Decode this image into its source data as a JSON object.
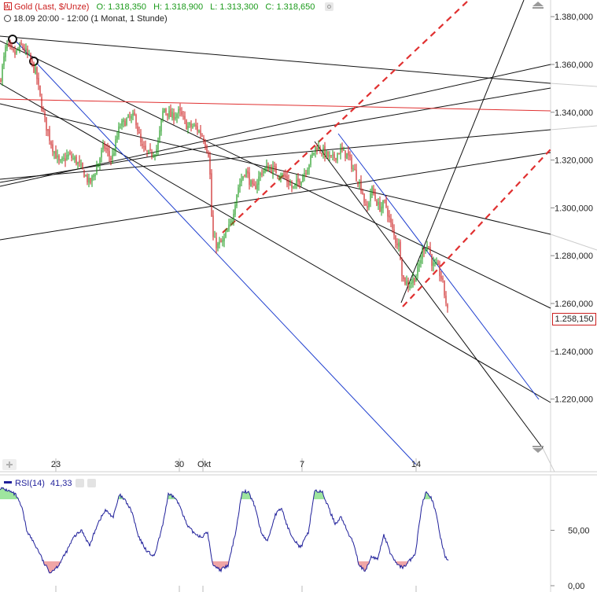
{
  "header": {
    "symbol": "Gold (Last, $/Unze)",
    "open": "O: 1.318,350",
    "high": "H: 1.318,900",
    "low": "L: 1.313,300",
    "close": "C: 1.318,650",
    "info": "18.09 20:00 - 12:00 (1 Monat, 1 Stunde)"
  },
  "current_price_label": "1.258,150",
  "colors": {
    "up": "#1a9a1a",
    "down": "#cc1f1f",
    "trend": "#000000",
    "channel": "#1f3fcf",
    "red_line": "#e03030",
    "rsi": "#1f1f9a",
    "overbought": "#9ee59e",
    "oversold": "#f0a6a6"
  },
  "chart_data": [
    {
      "type": "candlestick",
      "title": "Gold (Last, $/Unze)",
      "y_ticks": [
        "1.380,000",
        "1.360,000",
        "1.340,000",
        "1.320,000",
        "1.300,000",
        "1.280,000",
        "1.260,000",
        "1.240,000",
        "1.220,000"
      ],
      "y_tick_values": [
        1380,
        1360,
        1340,
        1320,
        1300,
        1280,
        1260,
        1240,
        1220
      ],
      "ylim": [
        1210,
        1384
      ],
      "x_ticks": [
        "23",
        "30",
        "Okt",
        "7",
        "14"
      ],
      "x_tick_index": [
        71,
        228,
        258,
        384,
        529
      ],
      "interval": "1 Stunde",
      "period": "1 Monat",
      "last": 1258.15,
      "close_path": [
        [
          0,
          1353
        ],
        [
          8,
          1368
        ],
        [
          18,
          1364
        ],
        [
          28,
          1368
        ],
        [
          38,
          1362
        ],
        [
          46,
          1356
        ],
        [
          52,
          1344
        ],
        [
          58,
          1335
        ],
        [
          66,
          1326
        ],
        [
          76,
          1318
        ],
        [
          86,
          1322
        ],
        [
          96,
          1320
        ],
        [
          106,
          1315
        ],
        [
          114,
          1310
        ],
        [
          122,
          1316
        ],
        [
          132,
          1326
        ],
        [
          142,
          1320
        ],
        [
          152,
          1334
        ],
        [
          162,
          1337
        ],
        [
          172,
          1338
        ],
        [
          180,
          1325
        ],
        [
          190,
          1322
        ],
        [
          200,
          1325
        ],
        [
          208,
          1342
        ],
        [
          218,
          1338
        ],
        [
          228,
          1340
        ],
        [
          238,
          1334
        ],
        [
          248,
          1334
        ],
        [
          258,
          1330
        ],
        [
          266,
          1322
        ],
        [
          270,
          1288
        ],
        [
          276,
          1284
        ],
        [
          284,
          1286
        ],
        [
          294,
          1294
        ],
        [
          302,
          1308
        ],
        [
          312,
          1316
        ],
        [
          322,
          1307
        ],
        [
          332,
          1315
        ],
        [
          342,
          1317
        ],
        [
          352,
          1315
        ],
        [
          362,
          1313
        ],
        [
          372,
          1308
        ],
        [
          382,
          1312
        ],
        [
          392,
          1318
        ],
        [
          402,
          1326
        ],
        [
          412,
          1323
        ],
        [
          422,
          1320
        ],
        [
          432,
          1324
        ],
        [
          442,
          1322
        ],
        [
          452,
          1314
        ],
        [
          460,
          1308
        ],
        [
          466,
          1298
        ],
        [
          472,
          1308
        ],
        [
          482,
          1300
        ],
        [
          490,
          1302
        ],
        [
          496,
          1294
        ],
        [
          502,
          1287
        ],
        [
          508,
          1284
        ],
        [
          512,
          1270
        ],
        [
          520,
          1268
        ],
        [
          530,
          1272
        ],
        [
          538,
          1283
        ],
        [
          544,
          1285
        ],
        [
          550,
          1276
        ],
        [
          556,
          1275
        ],
        [
          562,
          1270
        ],
        [
          566,
          1262
        ],
        [
          569,
          1258.15
        ]
      ],
      "rsi": {
        "label": "RSI(14)",
        "value": "41,33",
        "y_ticks": [
          "50,00",
          "0,00"
        ],
        "y_tick_values": [
          50,
          0
        ],
        "ylim": [
          0,
          100
        ],
        "upper_band": 78,
        "lower_band": 22,
        "series": [
          [
            0,
            88
          ],
          [
            10,
            86
          ],
          [
            20,
            82
          ],
          [
            28,
            70
          ],
          [
            34,
            50
          ],
          [
            42,
            40
          ],
          [
            50,
            30
          ],
          [
            56,
            20
          ],
          [
            64,
            12
          ],
          [
            74,
            18
          ],
          [
            84,
            30
          ],
          [
            94,
            44
          ],
          [
            104,
            50
          ],
          [
            114,
            36
          ],
          [
            124,
            56
          ],
          [
            134,
            68
          ],
          [
            144,
            62
          ],
          [
            152,
            82
          ],
          [
            160,
            76
          ],
          [
            168,
            66
          ],
          [
            176,
            44
          ],
          [
            186,
            32
          ],
          [
            196,
            26
          ],
          [
            206,
            52
          ],
          [
            214,
            82
          ],
          [
            222,
            80
          ],
          [
            230,
            70
          ],
          [
            238,
            54
          ],
          [
            246,
            48
          ],
          [
            256,
            44
          ],
          [
            264,
            48
          ],
          [
            270,
            20
          ],
          [
            280,
            14
          ],
          [
            290,
            18
          ],
          [
            300,
            50
          ],
          [
            308,
            86
          ],
          [
            316,
            84
          ],
          [
            324,
            72
          ],
          [
            332,
            48
          ],
          [
            340,
            40
          ],
          [
            350,
            64
          ],
          [
            358,
            70
          ],
          [
            366,
            52
          ],
          [
            374,
            42
          ],
          [
            382,
            34
          ],
          [
            392,
            48
          ],
          [
            400,
            86
          ],
          [
            410,
            84
          ],
          [
            418,
            70
          ],
          [
            426,
            56
          ],
          [
            434,
            62
          ],
          [
            442,
            48
          ],
          [
            450,
            38
          ],
          [
            456,
            20
          ],
          [
            464,
            12
          ],
          [
            472,
            26
          ],
          [
            480,
            24
          ],
          [
            488,
            46
          ],
          [
            496,
            30
          ],
          [
            504,
            20
          ],
          [
            512,
            16
          ],
          [
            520,
            22
          ],
          [
            528,
            28
          ],
          [
            536,
            72
          ],
          [
            542,
            86
          ],
          [
            548,
            80
          ],
          [
            554,
            66
          ],
          [
            560,
            44
          ],
          [
            566,
            26
          ],
          [
            570,
            24
          ]
        ]
      }
    }
  ]
}
